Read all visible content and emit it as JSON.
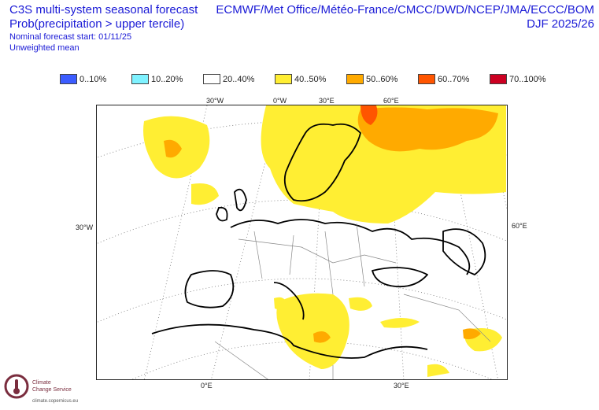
{
  "header": {
    "title": "C3S multi-system seasonal forecast",
    "subtitle": "Prob(precipitation > upper tercile)",
    "start": "Nominal forecast start: 01/11/25",
    "weighting": "Unweighted mean",
    "models": "ECMWF/Met Office/Météo-France/CMCC/DWD/NCEP/JMA/ECCC/BOM",
    "season": "DJF 2025/26"
  },
  "legend": [
    {
      "label": "0..10%",
      "color": "#3b5cff"
    },
    {
      "label": "10..20%",
      "color": "#7ff2ff"
    },
    {
      "label": "20..40%",
      "color": "#ffffff"
    },
    {
      "label": "40..50%",
      "color": "#ffee33"
    },
    {
      "label": "50..60%",
      "color": "#ffaa00"
    },
    {
      "label": "60..70%",
      "color": "#ff5500"
    },
    {
      "label": "70..100%",
      "color": "#cc0022"
    }
  ],
  "map_labels": {
    "top_30w": "30°W",
    "top_0w": "0°W",
    "top_30e": "30°E",
    "top_60e": "60°E",
    "left_30w": "30°W",
    "right_60e": "60°E",
    "bottom_0e": "0°E",
    "bottom_30e": "30°E"
  },
  "logo": {
    "line1": "Climate",
    "line2": "Change Service",
    "url": "climate.copernicus.eu"
  }
}
